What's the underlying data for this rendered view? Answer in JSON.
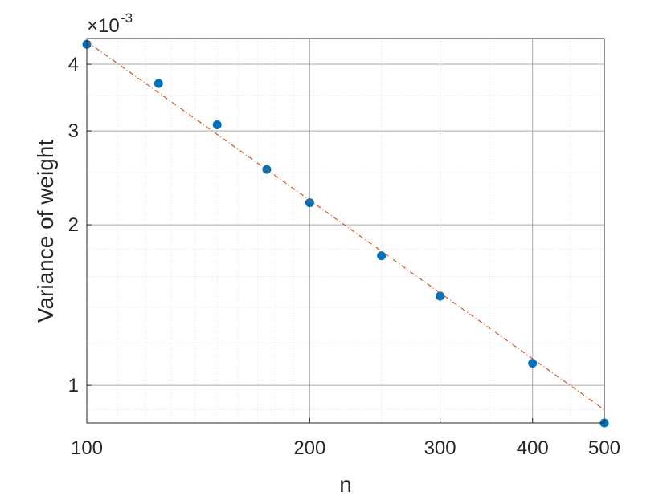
{
  "chart_data": {
    "type": "scatter",
    "x_label": "n",
    "y_label": "Variance of weight",
    "y_multiplier": {
      "base": "×10",
      "exponent": "-3"
    },
    "x_scale": "log",
    "y_scale": "log",
    "grid": true,
    "xlim": [
      100,
      500
    ],
    "ylim": [
      0.85,
      4.47
    ],
    "xticks": [
      100,
      200,
      300,
      400,
      500
    ],
    "yticks": [
      1,
      2,
      3,
      4
    ],
    "xminorticks": [
      110,
      120,
      130,
      140,
      150,
      160,
      170,
      180,
      190,
      250,
      350,
      450
    ],
    "yminorticks": [
      0.9,
      1.2,
      1.4,
      1.6,
      1.8,
      2.5,
      3.5
    ],
    "series": [
      {
        "color": "#0072bd",
        "marker": "circle",
        "x": [
          100,
          125,
          150,
          175,
          200,
          250,
          300,
          400,
          500
        ],
        "values": [
          4.36,
          3.68,
          3.08,
          2.54,
          2.2,
          1.75,
          1.47,
          1.1,
          0.85
        ]
      },
      {
        "color": "#d95319",
        "marker": "dash-dot-line",
        "x": [
          100,
          500
        ],
        "values": [
          4.41,
          0.9
        ]
      }
    ]
  }
}
